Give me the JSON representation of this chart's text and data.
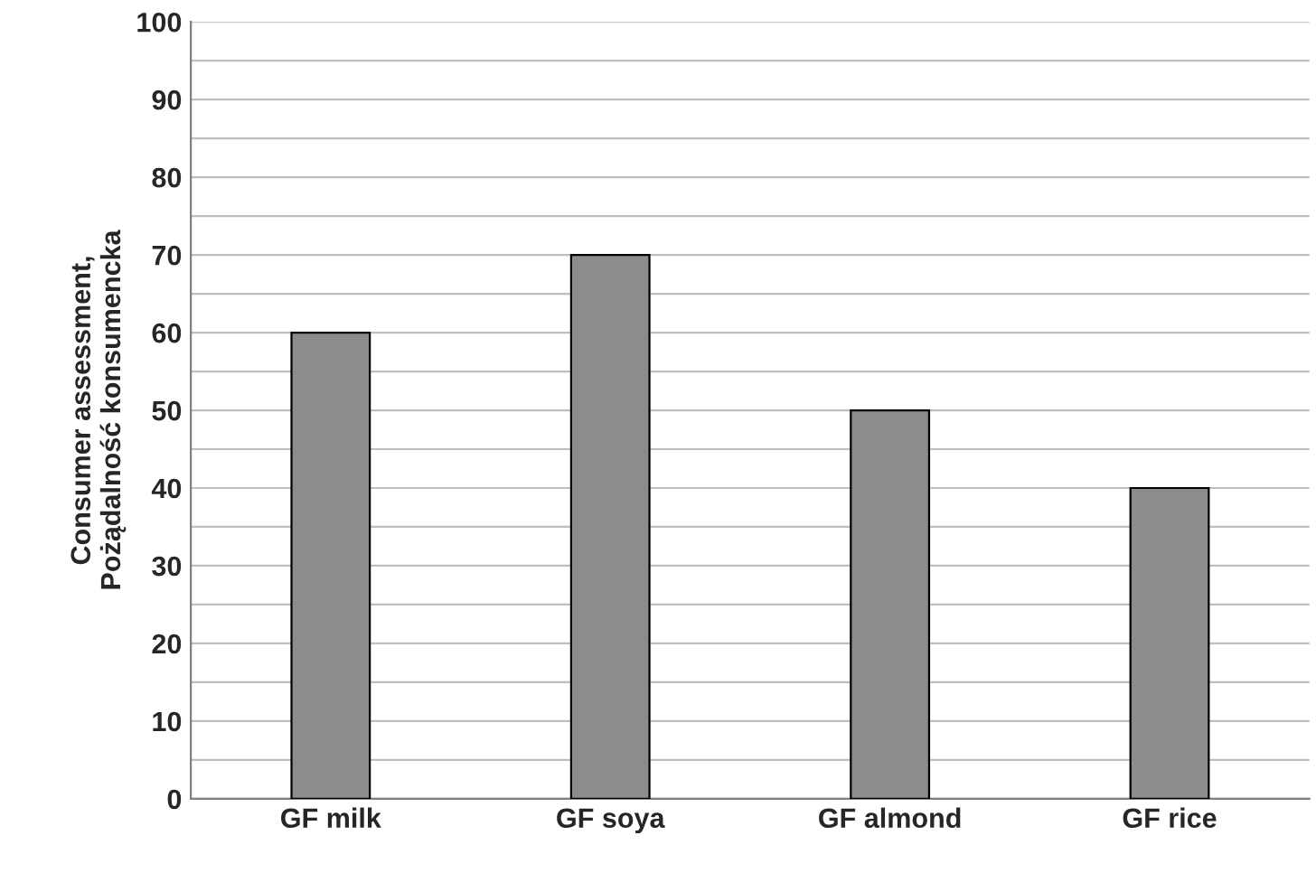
{
  "chart_data": {
    "type": "bar",
    "ylabel": "Consumer assessment,\nPożądalność konsumencka",
    "categories": [
      "GF milk",
      "GF soya",
      "GF almond",
      "GF rice"
    ],
    "values": [
      60,
      70,
      50,
      40
    ],
    "color": "#8c8c8c",
    "ylim": [
      0,
      100
    ],
    "yticks": [
      0,
      {
        "value": 5,
        "label": null
      },
      10,
      {
        "value": 15,
        "label": null
      },
      20,
      {
        "value": 25,
        "label": null
      },
      30,
      {
        "value": 35,
        "label": null
      },
      40,
      {
        "value": 45,
        "label": null
      },
      50,
      {
        "value": 55,
        "label": null
      },
      60,
      {
        "value": 65,
        "label": null
      },
      70,
      {
        "value": 75,
        "label": null
      },
      80,
      {
        "value": 85,
        "label": null
      },
      90,
      {
        "value": 95,
        "label": null
      },
      100
    ],
    "grid": "y",
    "legend": false
  }
}
